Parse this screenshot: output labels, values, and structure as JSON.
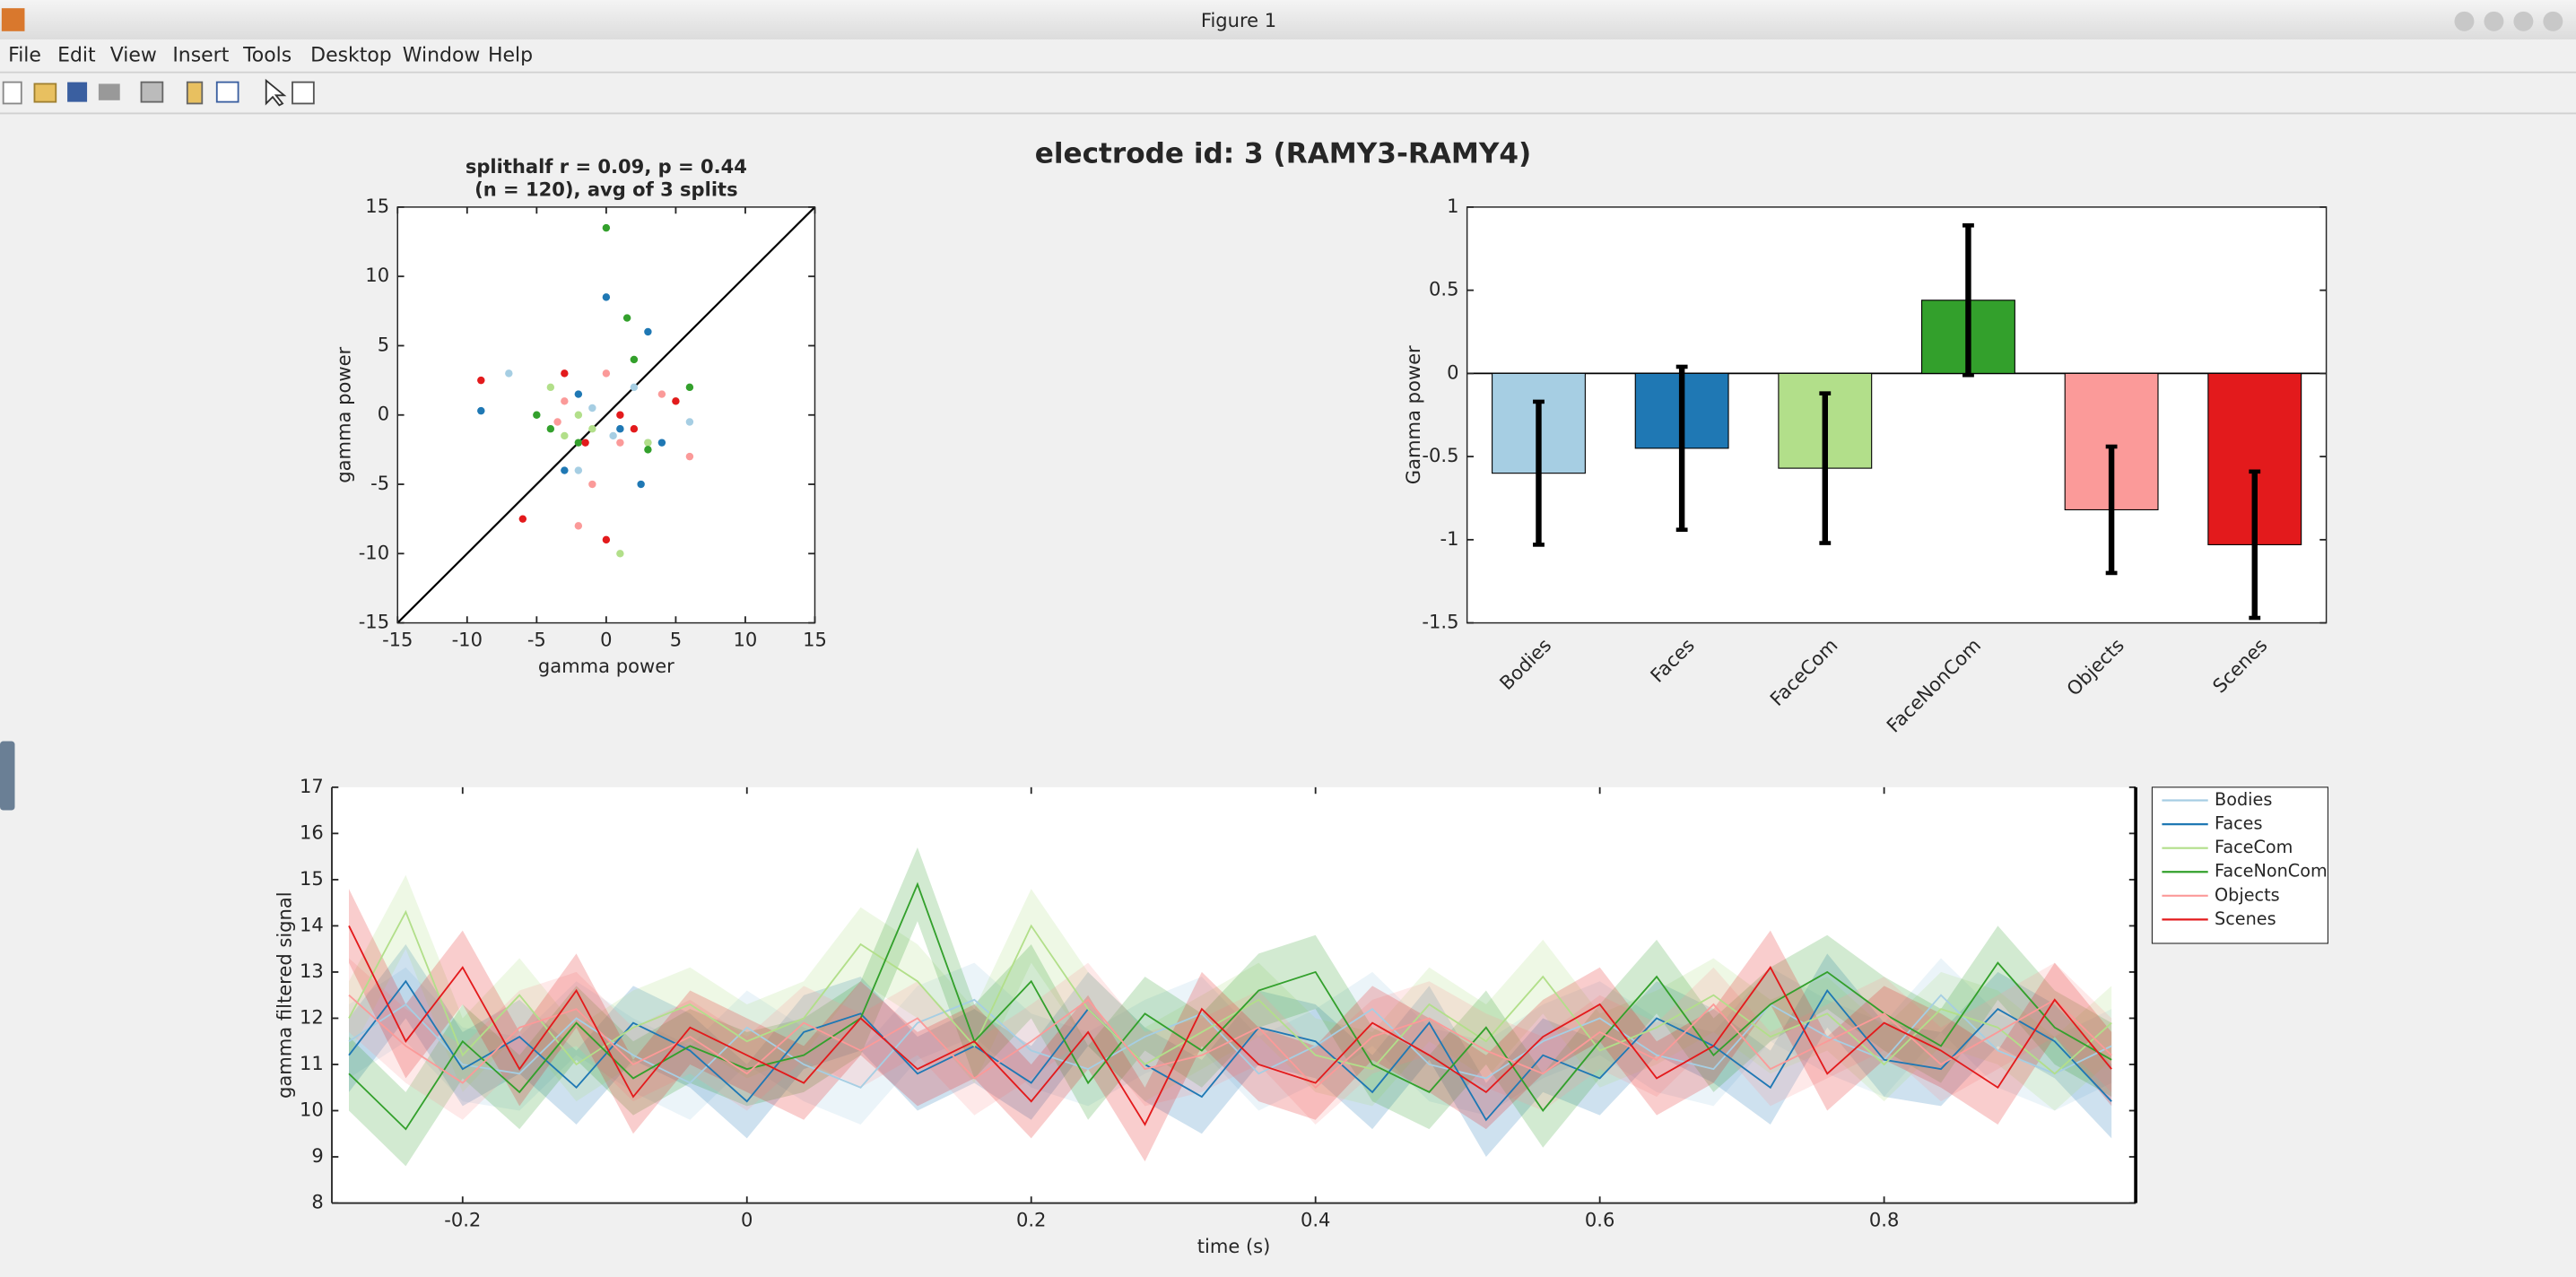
{
  "window_title": "Figure 1",
  "menu": [
    "File",
    "Edit",
    "View",
    "Insert",
    "Tools",
    "Desktop",
    "Window",
    "Help"
  ],
  "suptitle": "electrode id: 3 (RAMY3-RAMY4)",
  "chart_data": [
    {
      "type": "scatter",
      "title": [
        "splithalf r = 0.09, p = 0.44",
        "(n = 120), avg of 3 splits"
      ],
      "x_label": "gamma power",
      "y_label": "gamma power",
      "xlim": [
        -15,
        15
      ],
      "ylim": [
        -15,
        15
      ],
      "xticks": [
        -15,
        -10,
        -5,
        0,
        5,
        10,
        15
      ],
      "yticks": [
        -15,
        -10,
        -5,
        0,
        5,
        10,
        15
      ],
      "series": [
        {
          "color": "#a6cee3",
          "x": [
            -7,
            1,
            3,
            -1,
            6,
            -2,
            0.5,
            2
          ],
          "y": [
            3,
            -1,
            -2,
            0.5,
            -0.5,
            -4,
            -1.5,
            2
          ]
        },
        {
          "color": "#1f78b4",
          "x": [
            -9,
            0,
            3,
            -2,
            4,
            1,
            -3,
            2.5
          ],
          "y": [
            0.3,
            8.5,
            6,
            1.5,
            -2,
            -1,
            -4,
            -5
          ]
        },
        {
          "color": "#b2df8a",
          "x": [
            -4,
            -1,
            2,
            1,
            -2,
            5,
            -3,
            3
          ],
          "y": [
            2,
            -1,
            4,
            -10,
            0,
            1,
            -1.5,
            -2
          ]
        },
        {
          "color": "#33a02c",
          "x": [
            0,
            1.5,
            -4,
            2,
            -2,
            6,
            -5,
            3
          ],
          "y": [
            13.5,
            7,
            -1,
            4,
            -2,
            2,
            0,
            -2.5
          ]
        },
        {
          "color": "#fb9a99",
          "x": [
            -2,
            -1,
            6,
            -3,
            1,
            4,
            -3.5,
            0
          ],
          "y": [
            -8,
            -5,
            -3,
            1,
            -2,
            1.5,
            -0.5,
            3
          ]
        },
        {
          "color": "#e31a1c",
          "x": [
            -9,
            -6,
            0,
            -3,
            1,
            5,
            -1.5,
            2
          ],
          "y": [
            2.5,
            -7.5,
            -9,
            3,
            0,
            1,
            -2,
            -1
          ]
        }
      ]
    },
    {
      "type": "bar",
      "y_label": "Gamma power",
      "categories": [
        "Bodies",
        "Faces",
        "FaceCom",
        "FaceNonCom",
        "Objects",
        "Scenes"
      ],
      "values": [
        -0.6,
        -0.45,
        -0.57,
        0.44,
        -0.82,
        -1.03
      ],
      "errors": [
        0.43,
        0.49,
        0.45,
        0.45,
        0.38,
        0.44
      ],
      "colors": [
        "#a6cee3",
        "#1f78b4",
        "#b2df8a",
        "#33a02c",
        "#fb9a99",
        "#e31a1c"
      ],
      "ylim": [
        -1.5,
        1
      ],
      "yticks": [
        -1.5,
        -1,
        -0.5,
        0,
        0.5,
        1
      ]
    },
    {
      "type": "line",
      "x_label": "time (s)",
      "y_label": "gamma filtered signal",
      "xlim": [
        -0.292,
        0.977
      ],
      "ylim": [
        8,
        17
      ],
      "xticks": [
        -0.2,
        0,
        0.2,
        0.4,
        0.6,
        0.8
      ],
      "yticks": [
        8,
        9,
        10,
        11,
        12,
        13,
        14,
        15,
        16,
        17
      ],
      "x": [
        -0.28,
        -0.24,
        -0.2,
        -0.16,
        -0.12,
        -0.08,
        -0.04,
        0,
        0.04,
        0.08,
        0.12,
        0.16,
        0.2,
        0.24,
        0.28,
        0.32,
        0.36,
        0.4,
        0.44,
        0.48,
        0.52,
        0.56,
        0.6,
        0.64,
        0.68,
        0.72,
        0.76,
        0.8,
        0.84,
        0.88,
        0.92,
        0.96
      ],
      "legend": "outside-right",
      "series": [
        {
          "name": "Bodies",
          "color": "#a6cee3",
          "error": 0.8,
          "values": [
            11.5,
            12.3,
            11.0,
            10.8,
            12.0,
            11.2,
            10.6,
            11.8,
            11.0,
            10.5,
            11.9,
            12.4,
            11.3,
            10.9,
            11.6,
            12.1,
            10.8,
            11.4,
            12.2,
            11.0,
            10.7,
            11.5,
            12.0,
            11.2,
            10.9,
            12.3,
            11.6,
            11.1,
            12.5,
            11.3,
            10.8,
            11.4
          ]
        },
        {
          "name": "Faces",
          "color": "#1f78b4",
          "error": 0.8,
          "values": [
            11.2,
            12.8,
            10.9,
            11.6,
            10.5,
            11.9,
            11.3,
            10.2,
            11.7,
            12.1,
            10.8,
            11.4,
            10.6,
            12.2,
            11.0,
            10.3,
            11.8,
            11.5,
            10.4,
            11.9,
            9.8,
            11.2,
            10.7,
            12.0,
            11.4,
            10.5,
            12.6,
            11.1,
            10.9,
            12.2,
            11.5,
            10.2
          ]
        },
        {
          "name": "FaceCom",
          "color": "#b2df8a",
          "error": 0.8,
          "values": [
            12.0,
            14.3,
            11.2,
            12.5,
            11.0,
            11.8,
            12.3,
            11.5,
            12.0,
            13.6,
            12.8,
            11.4,
            14.0,
            12.2,
            11.0,
            11.7,
            12.4,
            11.2,
            10.9,
            12.3,
            11.5,
            12.9,
            11.3,
            11.8,
            12.5,
            11.6,
            12.1,
            11.0,
            12.2,
            11.8,
            10.8,
            11.9
          ]
        },
        {
          "name": "FaceNonCom",
          "color": "#33a02c",
          "error": 0.8,
          "values": [
            10.8,
            9.6,
            11.5,
            10.4,
            11.9,
            10.7,
            11.4,
            10.9,
            11.2,
            12.0,
            14.9,
            11.5,
            12.8,
            10.6,
            12.1,
            11.3,
            12.6,
            13.0,
            11.0,
            10.4,
            11.8,
            10.0,
            11.5,
            12.9,
            11.2,
            12.3,
            13.0,
            12.1,
            11.4,
            13.2,
            11.8,
            11.1
          ]
        },
        {
          "name": "Objects",
          "color": "#fb9a99",
          "error": 0.8,
          "values": [
            12.5,
            11.4,
            10.6,
            11.8,
            12.2,
            11.0,
            11.6,
            10.8,
            11.9,
            11.3,
            12.0,
            10.7,
            11.5,
            12.4,
            10.9,
            11.2,
            11.8,
            10.5,
            11.6,
            12.0,
            11.3,
            10.8,
            11.7,
            11.1,
            12.3,
            10.9,
            11.5,
            12.1,
            11.0,
            11.7,
            12.4,
            11.2
          ]
        },
        {
          "name": "Scenes",
          "color": "#e31a1c",
          "error": 0.8,
          "values": [
            14.0,
            11.5,
            13.1,
            10.9,
            12.6,
            10.3,
            11.8,
            11.2,
            10.6,
            12.0,
            10.9,
            11.5,
            10.2,
            11.7,
            9.7,
            12.2,
            11.0,
            10.6,
            11.9,
            11.2,
            10.4,
            11.6,
            12.3,
            10.7,
            11.4,
            13.1,
            10.8,
            11.9,
            11.3,
            10.5,
            12.4,
            10.9
          ]
        }
      ]
    }
  ]
}
